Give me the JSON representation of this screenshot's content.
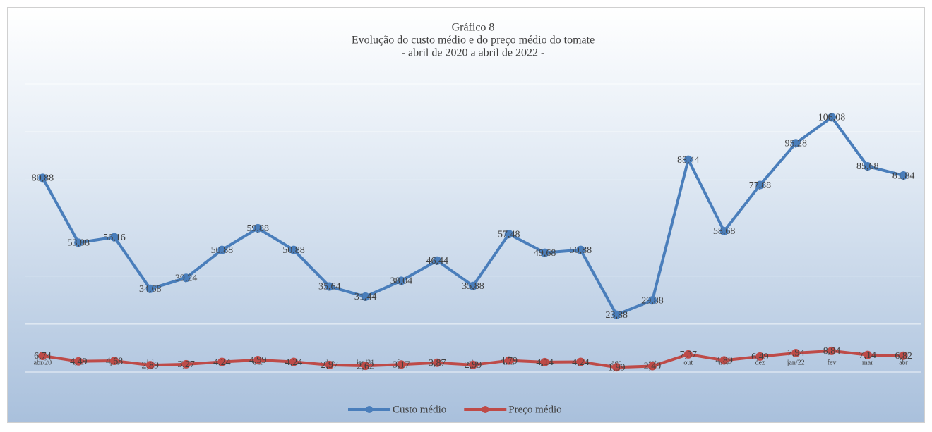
{
  "chart_data": {
    "type": "line",
    "title": "Gráfico 8",
    "subtitle": "Evolução do custo médio e do preço médio do tomate",
    "period": "- abril de 2020 a abril de 2022 -",
    "categories": [
      "abr/20",
      "mai",
      "jun",
      "jul",
      "ago",
      "set",
      "out",
      "nov",
      "dez",
      "jan/21",
      "fev",
      "mar",
      "abr",
      "mai",
      "jun",
      "jul",
      "ago",
      "set",
      "out",
      "nov",
      "dez",
      "jan/22",
      "fev",
      "mar",
      "abr"
    ],
    "series": [
      {
        "name": "Custo médio",
        "color": "#4a7ebb",
        "values": [
          80.88,
          53.88,
          56.16,
          34.68,
          39.24,
          50.88,
          59.88,
          50.88,
          35.64,
          31.44,
          38.04,
          46.44,
          35.88,
          57.48,
          49.68,
          50.88,
          23.88,
          29.88,
          88.44,
          58.68,
          77.88,
          95.28,
          106.08,
          85.68,
          81.84
        ],
        "value_labels": [
          "80,88",
          "53,88",
          "56,16",
          "34,68",
          "39,24",
          "50,88",
          "59,88",
          "50,88",
          "35,64",
          "31,44",
          "38,04",
          "46,44",
          "35,88",
          "57,48",
          "49,68",
          "50,88",
          "23,88",
          "29,88",
          "88,44",
          "58,68",
          "77,88",
          "95,28",
          "106,08",
          "85,68",
          "81,84"
        ]
      },
      {
        "name": "Preço médio",
        "color": "#be4b48",
        "values": [
          6.74,
          4.49,
          4.68,
          2.89,
          3.27,
          4.24,
          4.99,
          4.24,
          2.97,
          2.62,
          3.17,
          3.87,
          2.99,
          4.79,
          4.14,
          4.24,
          1.99,
          2.49,
          7.37,
          4.89,
          6.49,
          7.94,
          8.84,
          7.14,
          6.82
        ],
        "value_labels": [
          "6,74",
          "4,49",
          "4,68",
          "2,89",
          "3,27",
          "4,24",
          "4,99",
          "4,24",
          "2,97",
          "2,62",
          "3,17",
          "3,87",
          "2,99",
          "4,79",
          "4,14",
          "4,24",
          "1,99",
          "2,49",
          "7,37",
          "4,89",
          "6,49",
          "7,94",
          "8,84",
          "7,14",
          "6,82"
        ]
      }
    ],
    "ylim": [
      0,
      120
    ],
    "yticks": [
      0,
      20,
      40,
      60,
      80,
      100,
      120
    ],
    "grid": true,
    "legend": "bottom"
  }
}
